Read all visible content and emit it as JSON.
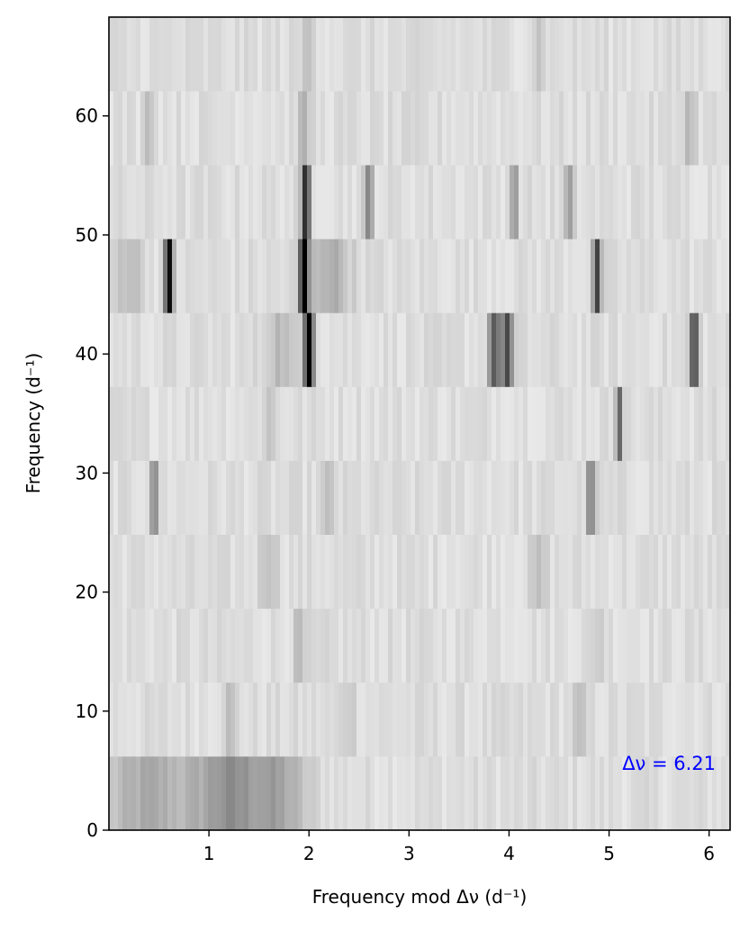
{
  "chart_data": {
    "type": "heatmap",
    "title": "",
    "xlabel": "Frequency mod Δν (d⁻¹)",
    "ylabel": "Frequency (d⁻¹)",
    "xlim": [
      0.0,
      6.21
    ],
    "ylim": [
      0,
      68.3
    ],
    "xticks": [
      1,
      2,
      3,
      4,
      5,
      6
    ],
    "yticks": [
      0,
      10,
      20,
      30,
      40,
      50,
      60
    ],
    "xtick_labels": [
      "1",
      "2",
      "3",
      "4",
      "5",
      "6"
    ],
    "ytick_labels": [
      "0",
      "10",
      "20",
      "30",
      "40",
      "50",
      "60"
    ],
    "colormap": "gray_r",
    "grid": false,
    "annotation": {
      "text": "Δν = 6.21",
      "position": "bottom-right",
      "color": "#0000ff"
    },
    "rows": [
      {
        "y0": 0.0,
        "y1": 6.21,
        "peaks": [
          [
            1.2,
            0.25,
            0.3
          ],
          [
            0.4,
            0.3,
            0.2
          ],
          [
            1.7,
            0.2,
            0.2
          ]
        ]
      },
      {
        "y0": 6.21,
        "y1": 12.42,
        "peaks": [
          [
            1.2,
            0.05,
            0.12
          ],
          [
            2.4,
            0.05,
            0.1
          ],
          [
            4.7,
            0.05,
            0.1
          ]
        ]
      },
      {
        "y0": 12.42,
        "y1": 18.63,
        "peaks": [
          [
            1.9,
            0.04,
            0.12
          ],
          [
            4.9,
            0.04,
            0.1
          ]
        ]
      },
      {
        "y0": 18.63,
        "y1": 24.84,
        "peaks": [
          [
            1.6,
            0.06,
            0.15
          ],
          [
            4.3,
            0.06,
            0.1
          ]
        ]
      },
      {
        "y0": 24.84,
        "y1": 31.05,
        "peaks": [
          [
            0.45,
            0.03,
            0.35
          ],
          [
            4.82,
            0.03,
            0.4
          ],
          [
            2.2,
            0.05,
            0.1
          ]
        ]
      },
      {
        "y0": 31.05,
        "y1": 37.26,
        "peaks": [
          [
            5.1,
            0.025,
            0.55
          ],
          [
            1.6,
            0.05,
            0.1
          ]
        ]
      },
      {
        "y0": 37.26,
        "y1": 43.47,
        "peaks": [
          [
            2.0,
            0.035,
            0.95
          ],
          [
            3.85,
            0.04,
            0.55
          ],
          [
            3.98,
            0.04,
            0.6
          ],
          [
            5.85,
            0.03,
            0.65
          ],
          [
            1.7,
            0.1,
            0.15
          ]
        ]
      },
      {
        "y0": 43.47,
        "y1": 49.68,
        "peaks": [
          [
            1.95,
            0.03,
            1.0
          ],
          [
            0.6,
            0.03,
            0.85
          ],
          [
            4.88,
            0.03,
            0.6
          ],
          [
            2.2,
            0.15,
            0.2
          ],
          [
            0.2,
            0.1,
            0.15
          ]
        ]
      },
      {
        "y0": 49.68,
        "y1": 55.89,
        "peaks": [
          [
            1.97,
            0.03,
            0.75
          ],
          [
            2.6,
            0.03,
            0.35
          ],
          [
            4.05,
            0.03,
            0.3
          ],
          [
            4.6,
            0.03,
            0.25
          ]
        ]
      },
      {
        "y0": 55.89,
        "y1": 62.1,
        "peaks": [
          [
            0.4,
            0.03,
            0.2
          ],
          [
            1.95,
            0.05,
            0.15
          ],
          [
            5.8,
            0.05,
            0.15
          ]
        ]
      },
      {
        "y0": 62.1,
        "y1": 68.31,
        "peaks": [
          [
            2.0,
            0.05,
            0.12
          ],
          [
            4.3,
            0.05,
            0.1
          ]
        ]
      }
    ]
  }
}
